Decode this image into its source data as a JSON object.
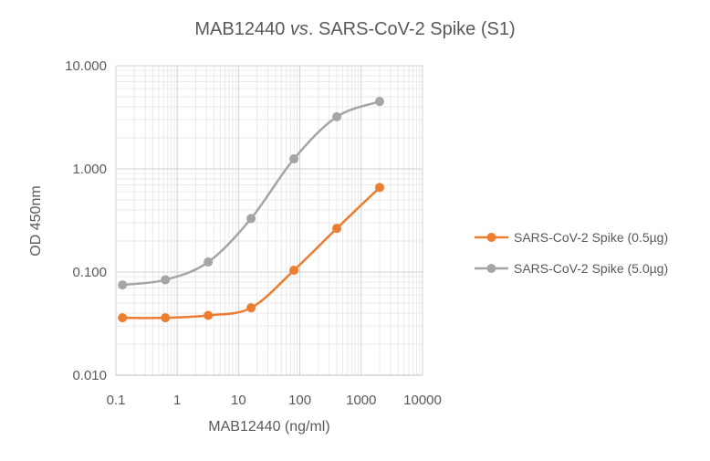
{
  "chart_data": {
    "type": "line",
    "title_prefix": "MAB12440 ",
    "title_emph": "vs",
    "title_suffix": ". SARS-CoV-2 Spike (S1)",
    "xlabel": "MAB12440 (ng/ml)",
    "ylabel": "OD 450nm",
    "x_scale": "log",
    "y_scale": "log",
    "xlim": [
      0.1,
      10000
    ],
    "ylim": [
      0.01,
      10
    ],
    "x_ticks": [
      {
        "value": 0.1,
        "label": "0.1"
      },
      {
        "value": 1,
        "label": "1"
      },
      {
        "value": 10,
        "label": "10"
      },
      {
        "value": 100,
        "label": "100"
      },
      {
        "value": 1000,
        "label": "1000"
      },
      {
        "value": 10000,
        "label": "10000"
      }
    ],
    "y_ticks": [
      {
        "value": 0.01,
        "label": "0.010"
      },
      {
        "value": 0.1,
        "label": "0.100"
      },
      {
        "value": 1,
        "label": "1.000"
      },
      {
        "value": 10,
        "label": "10.000"
      }
    ],
    "grid": "major and minor",
    "legend_position": "right",
    "x": [
      0.128,
      0.64,
      3.2,
      16,
      80,
      400,
      2000
    ],
    "series": [
      {
        "name": "SARS-CoV-2 Spike (0.5µg)",
        "color": "#ED7D31",
        "values": [
          0.036,
          0.036,
          0.038,
          0.045,
          0.104,
          0.265,
          0.66
        ]
      },
      {
        "name": "SARS-CoV-2 Spike (5.0µg)",
        "color": "#A5A5A5",
        "values": [
          0.075,
          0.084,
          0.125,
          0.33,
          1.25,
          3.2,
          4.5
        ]
      }
    ]
  }
}
